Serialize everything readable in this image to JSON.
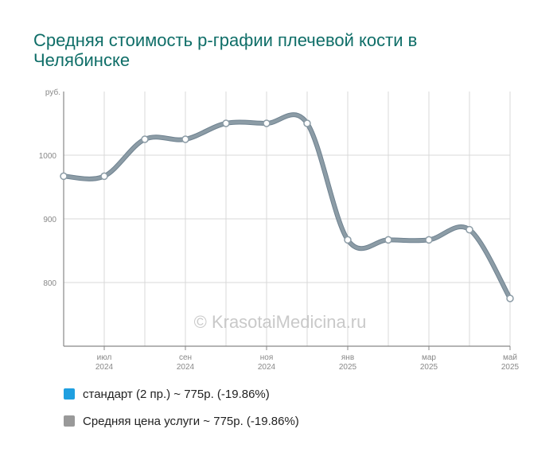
{
  "title": "Средняя стоимость р-графии плечевой кости в Челябинске",
  "watermark": "© KrasotaiMedicina.ru",
  "colors": {
    "title": "#0f6e68",
    "line": "#8c9ca6",
    "grid": "#d9d9d9",
    "axis": "#888888",
    "tick_text": "#888888",
    "watermark": "#c9c9c9"
  },
  "chart_data": {
    "type": "line",
    "ylabel": "руб.",
    "y_ticks": [
      800,
      900,
      1000
    ],
    "ylim": [
      700,
      1100
    ],
    "grid": true,
    "x_tick_labels": [
      {
        "month": "июл",
        "year": "2024"
      },
      {
        "month": "сен",
        "year": "2024"
      },
      {
        "month": "ноя",
        "year": "2024"
      },
      {
        "month": "янв",
        "year": "2025"
      },
      {
        "month": "мар",
        "year": "2025"
      },
      {
        "month": "май",
        "year": "2025"
      }
    ],
    "x": [
      "2024-06",
      "2024-07",
      "2024-08",
      "2024-09",
      "2024-10",
      "2024-11",
      "2024-12",
      "2025-01",
      "2025-02",
      "2025-03",
      "2025-04",
      "2025-05"
    ],
    "series": [
      {
        "values": [
          967,
          967,
          1025,
          1025,
          1050,
          1050,
          1050,
          867,
          867,
          867,
          883,
          775
        ]
      }
    ],
    "legend_placement": "bottom"
  },
  "legend": [
    {
      "label": "стандарт (2 пр.) ~ 775р. (-19.86%)",
      "color": "#1f9fe0"
    },
    {
      "label": "Средняя цена услуги ~ 775р. (-19.86%)",
      "color": "#999999"
    }
  ]
}
